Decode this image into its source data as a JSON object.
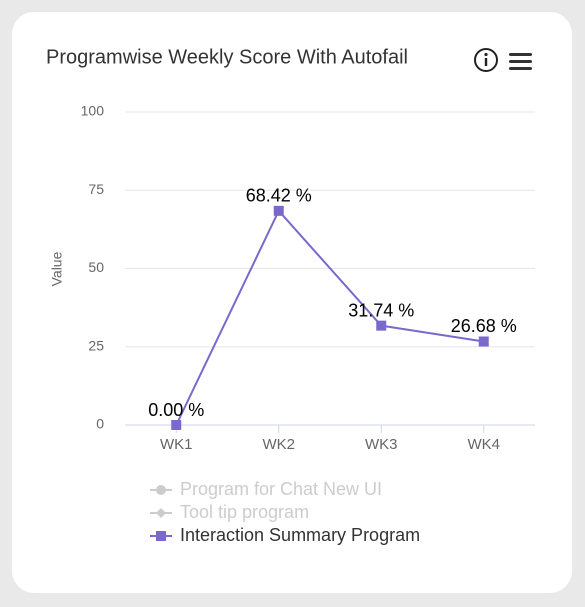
{
  "chart_data": {
    "type": "line",
    "title": "Programwise Weekly Score With Autofail",
    "y_label": "Value",
    "categories": [
      "WK1",
      "WK2",
      "WK3",
      "WK4"
    ],
    "series": [
      {
        "name": "Program for Chat New UI",
        "color": "#cccccc",
        "marker": "circle",
        "visible": false
      },
      {
        "name": "Tool tip program",
        "color": "#cccccc",
        "marker": "diamond",
        "visible": false
      },
      {
        "name": "Interaction Summary Program",
        "color": "#7b68cc",
        "marker": "square",
        "visible": true,
        "values": [
          0,
          68.42,
          31.74,
          26.68
        ],
        "value_labels": [
          "0.00 %",
          "68.42 %",
          "31.74 %",
          "26.68 %"
        ]
      }
    ],
    "ylim": [
      0,
      100
    ],
    "yticks": [
      0,
      25,
      50,
      75,
      100
    ],
    "grid": true
  }
}
